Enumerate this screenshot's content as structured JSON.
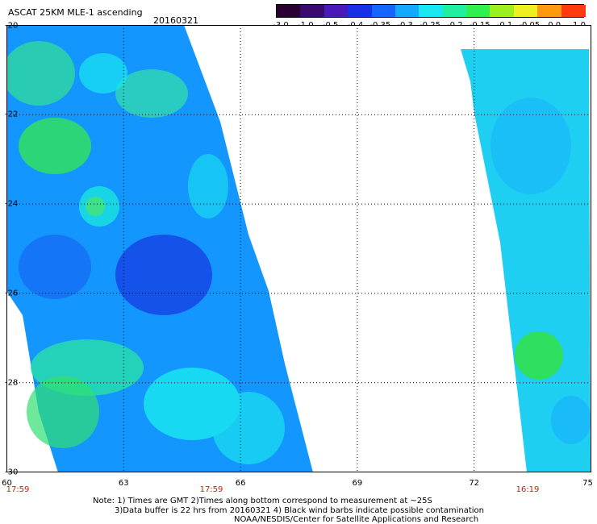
{
  "header": {
    "title": "ASCAT 25KM MLE-1 ascending",
    "date": "20160321"
  },
  "colorbar": {
    "ticks": [
      "-3.0",
      "-1.0",
      "-0.5",
      "-0.4",
      "-0.35",
      "-0.3",
      "-0.25",
      "-0.2",
      "-0.15",
      "-0.1",
      "-0.05",
      "0.0",
      "1.0"
    ],
    "colors": [
      "#2a0033",
      "#3b0a6e",
      "#4a1ab8",
      "#1a30e6",
      "#1466ff",
      "#14a8ff",
      "#18e6f0",
      "#1ef0a0",
      "#30f050",
      "#9cf020",
      "#f0f020",
      "#ff9a10",
      "#ff3a10"
    ]
  },
  "axes": {
    "lat_labels": [
      "-20",
      "-22",
      "-24",
      "-26",
      "-28",
      "-30"
    ],
    "lon_labels": [
      "60",
      "63",
      "66",
      "69",
      "72",
      "75"
    ]
  },
  "times": [
    "17:59",
    "17:59",
    "16:19"
  ],
  "notes": [
    "Note: 1) Times are GMT 2)Times along bottom correspond to measurement at ~25S",
    "3)Data buffer is 22 hrs from 20160321 4) Black wind barbs indicate possible contamination",
    "NOAA/NESDIS/Center for Satellite Applications and Research"
  ]
}
